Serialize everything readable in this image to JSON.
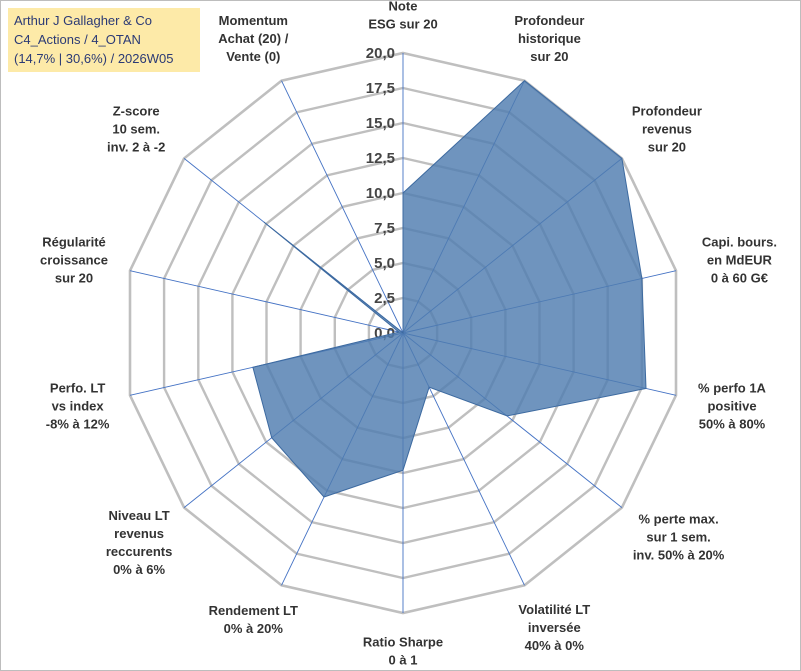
{
  "title_box": {
    "line1": "Arthur J Gallagher & Co",
    "line2": "C4_Actions / 4_OTAN",
    "line3": "(14,7% | 30,6%) / 2026W05"
  },
  "chart_data": {
    "type": "radar",
    "rmax": 20,
    "ticks": [
      "0,0",
      "2,5",
      "5,0",
      "7,5",
      "10,0",
      "12,5",
      "15,0",
      "17,5",
      "20,0"
    ],
    "tick_values": [
      0,
      2.5,
      5,
      7.5,
      10,
      12.5,
      15,
      17.5,
      20
    ],
    "gridlines": [
      2.5,
      5,
      7.5,
      10,
      12.5,
      15,
      17.5,
      20
    ],
    "axes": [
      {
        "lines": [
          "Note",
          "ESG sur 20"
        ],
        "value": 10.0
      },
      {
        "lines": [
          "Profondeur",
          "historique",
          "sur 20"
        ],
        "value": 20.0
      },
      {
        "lines": [
          "Profondeur",
          "revenus",
          "sur 20"
        ],
        "value": 20.0
      },
      {
        "lines": [
          "Capi. bours.",
          "en MdEUR",
          "0 à 60 G€"
        ],
        "value": 17.5
      },
      {
        "lines": [
          "% perfo 1A",
          "positive",
          "50% à 80%"
        ],
        "value": 17.8
      },
      {
        "lines": [
          "% perte max.",
          "sur 1 sem.",
          "inv. 50% à 20%"
        ],
        "value": 9.5
      },
      {
        "lines": [
          "Volatilité LT",
          "inversée",
          "40% à 0%"
        ],
        "value": 4.3
      },
      {
        "lines": [
          "Ratio Sharpe",
          "0 à 1"
        ],
        "value": 9.8
      },
      {
        "lines": [
          "Rendement LT",
          "0% à 20%"
        ],
        "value": 13.0
      },
      {
        "lines": [
          "Niveau LT",
          "revenus",
          "reccurents",
          "0% à 6%"
        ],
        "value": 12.0
      },
      {
        "lines": [
          "Perfo. LT",
          "vs index",
          "-8% à 12%"
        ],
        "value": 11.0
      },
      {
        "lines": [
          "Régularité",
          "croissance",
          "sur 20"
        ],
        "value": 0.3
      },
      {
        "lines": [
          "Z-score",
          "10 sem.",
          "inv. 2 à -2"
        ],
        "value": 12.7
      },
      {
        "lines": [
          "Momentum",
          "Achat (20) /",
          "Vente (0)"
        ],
        "value": 0.0
      }
    ],
    "colors": {
      "fill": "#4f7db0",
      "stroke": "#3d6aa0",
      "grid": "#bfbfbf",
      "spoke": "#4472c4"
    }
  }
}
